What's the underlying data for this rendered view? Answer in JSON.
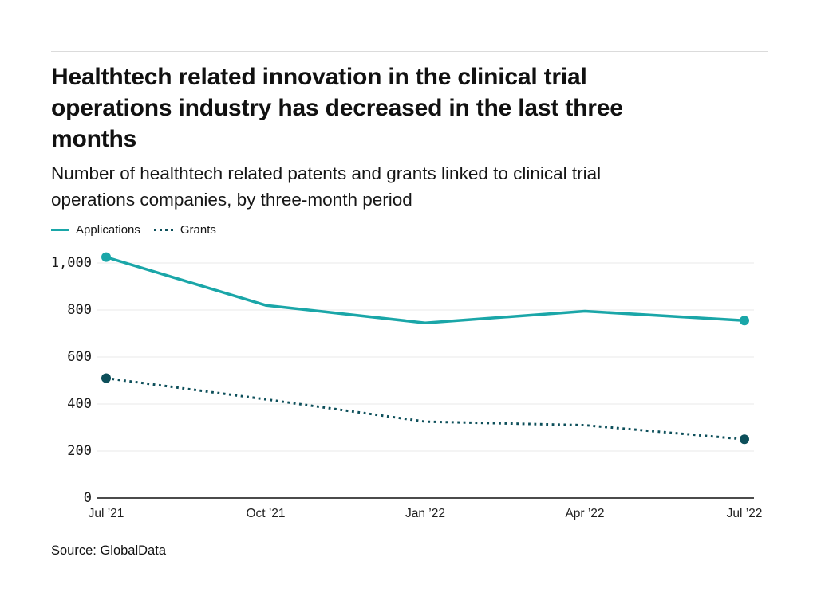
{
  "header": {
    "title_lines": [
      "Healthtech related innovation in the clinical trial",
      "operations industry has decreased in the last three",
      "months"
    ],
    "subtitle_lines": [
      "Number of healthtech related patents and grants linked to clinical trial",
      "operations companies, by three-month period"
    ]
  },
  "source": "Source: GlobalData",
  "colors": {
    "applications": "#1aa6a8",
    "grants": "#0d4f5a",
    "gridline": "#e9e9e9",
    "axis": "#4b4b4b",
    "rule": "#dbdbdb"
  },
  "chart_data": {
    "type": "line",
    "categories": [
      "Jul ’21",
      "Oct ’21",
      "Jan ’22",
      "Apr ’22",
      "Jul ’22"
    ],
    "series": [
      {
        "name": "Applications",
        "color": "#1aa6a8",
        "dash": "solid",
        "values": [
          1025,
          820,
          745,
          795,
          755
        ]
      },
      {
        "name": "Grants",
        "color": "#0d4f5a",
        "dash": "dotted",
        "values": [
          510,
          420,
          325,
          310,
          250
        ]
      }
    ],
    "yticks": [
      0,
      200,
      400,
      600,
      800,
      1000
    ],
    "ylim": [
      0,
      1060
    ],
    "xlabel": "",
    "ylabel": "",
    "grid": "horizontal",
    "legend_position": "top-left",
    "markers": "endpoints-only"
  }
}
